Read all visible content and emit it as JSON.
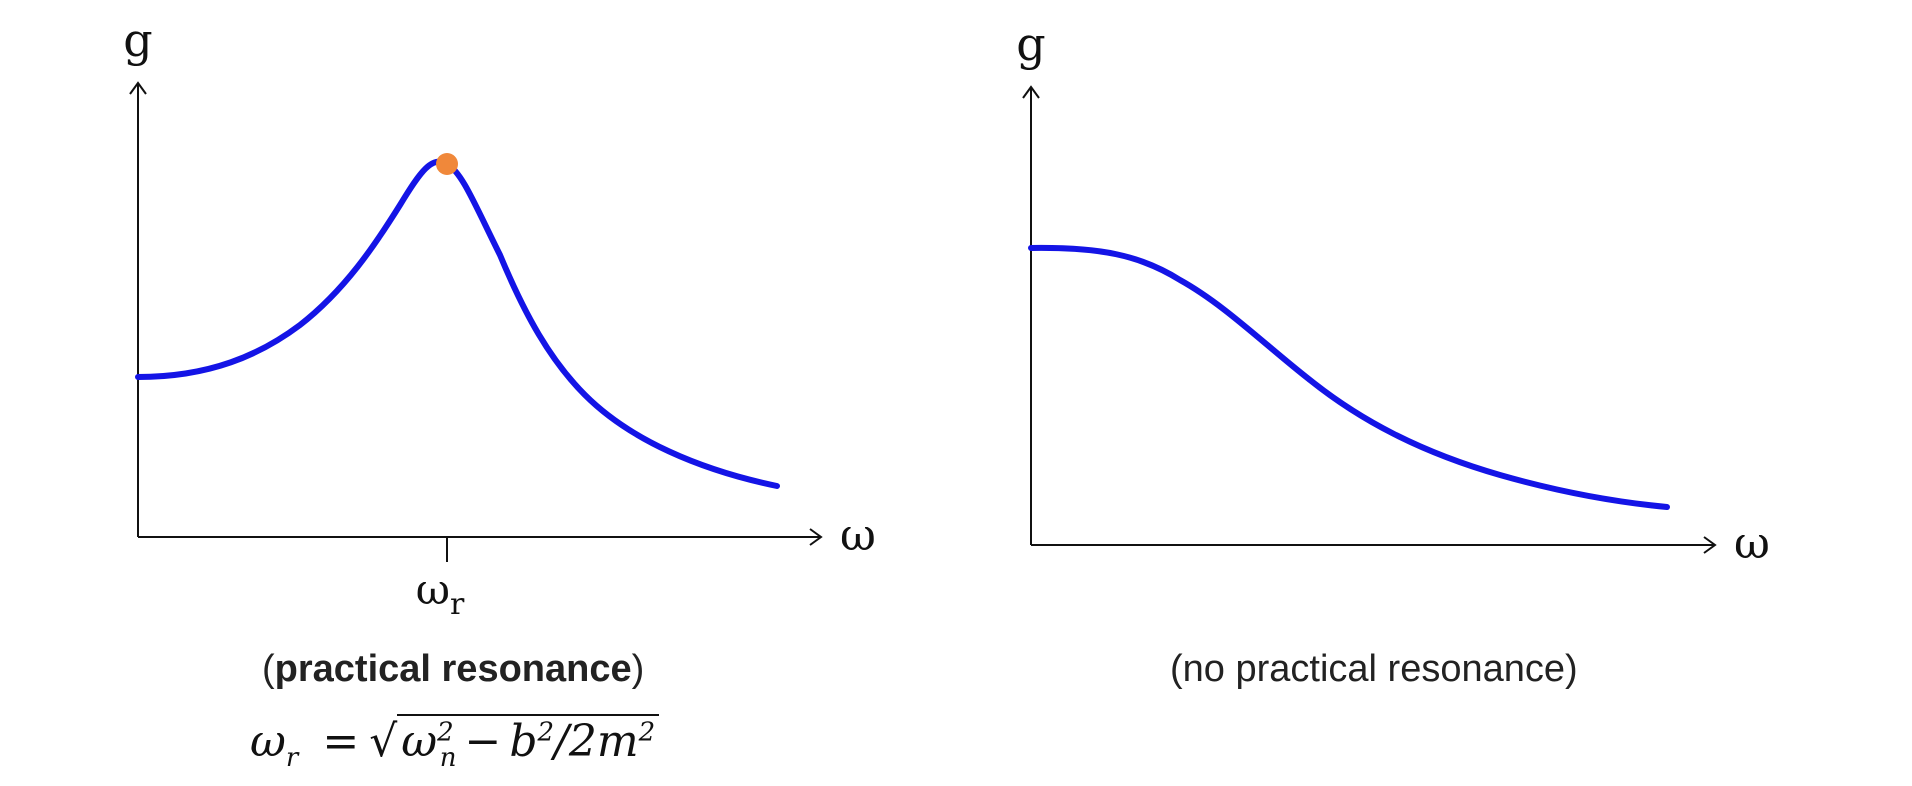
{
  "colors": {
    "curve": "#1414e6",
    "peak_marker": "#f0883a",
    "axis": "#111111"
  },
  "left_plot": {
    "y_axis_label": "g",
    "x_axis_label": "ω",
    "tick_label_main": "ω",
    "tick_label_sub": "r",
    "caption_open": "(",
    "caption_bold": "practical resonance",
    "caption_close": ")",
    "formula": {
      "lhs": "ω",
      "lhs_sub": "r",
      "eq": "=",
      "sqrt_sign": "√",
      "term1": "ω",
      "term1_sup": "2",
      "term1_sub": "n",
      "minus": "−",
      "term2": "b",
      "term2_sup": "2",
      "slash": "/2m",
      "term3_sup": "2"
    }
  },
  "right_plot": {
    "y_axis_label": "g",
    "x_axis_label": "ω",
    "caption": "(no practical resonance)"
  }
}
